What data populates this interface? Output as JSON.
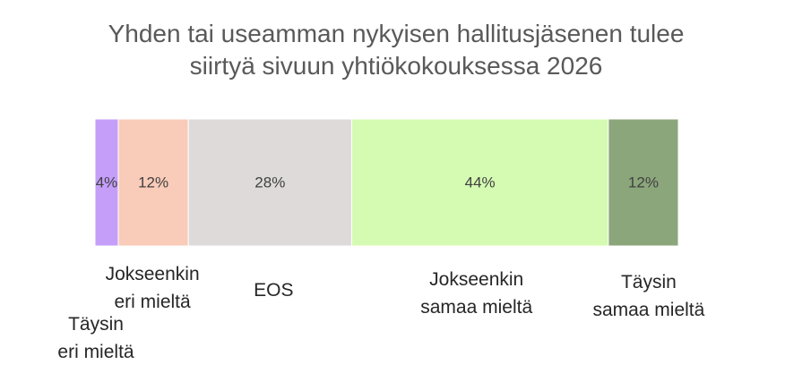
{
  "chart_data": {
    "type": "bar",
    "orientation": "horizontal",
    "stacked": true,
    "title": "Yhden tai useamman nykyisen hallitusjäsenen tulee siirtyä sivuun yhtiökokouksessa 2026",
    "categories": [
      "Täysin eri mieltä",
      "Jokseenkin eri mieltä",
      "EOS",
      "Jokseenkin samaa mieltä",
      "Täysin samaa mieltä"
    ],
    "values": [
      4,
      12,
      28,
      44,
      12
    ],
    "data_labels": [
      "4%",
      "12%",
      "28%",
      "44%",
      "12%"
    ],
    "colors": [
      "#C59EFA",
      "#F9CBB9",
      "#DEDADA",
      "#D5FBB3",
      "#8CA67C"
    ],
    "xlim": [
      0,
      100
    ],
    "grid": false,
    "legend": "none"
  }
}
